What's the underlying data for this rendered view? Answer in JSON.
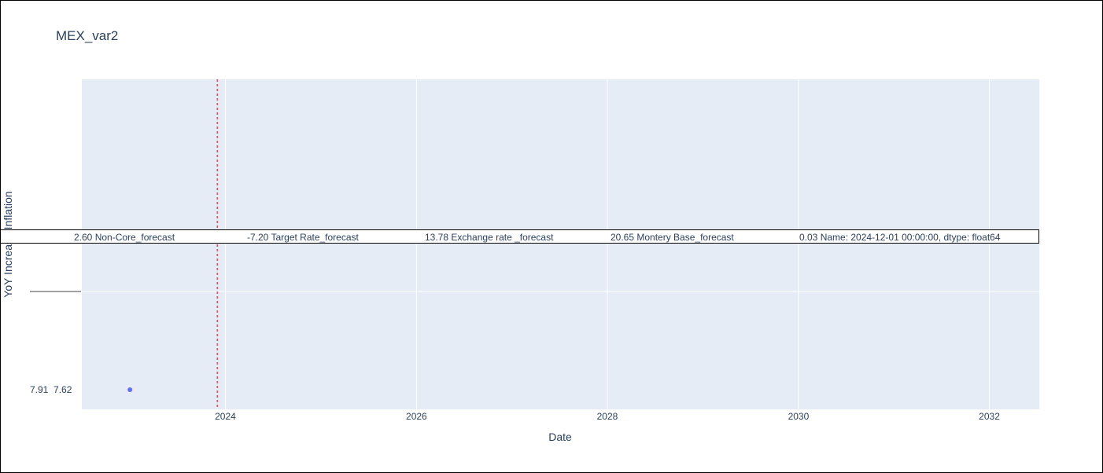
{
  "chart_data": {
    "type": "scatter",
    "title": "MEX_var2",
    "xlabel": "Date",
    "ylabel": "YoY Increase Inflation",
    "x_axis_type": "date",
    "xlim": [
      "2022-07-01",
      "2032-07-10"
    ],
    "x_ticks": [
      "2024",
      "2026",
      "2028",
      "2030",
      "2032"
    ],
    "y_tick_labels": [
      "7.91  7.62"
    ],
    "grid": true,
    "series": [
      {
        "x": [
          "2023-01-01"
        ],
        "y": [
          7.62
        ],
        "color": "#636efa"
      }
    ],
    "vline": {
      "x": "2023-12-01",
      "color": "#e8000b",
      "style": "dotted"
    },
    "annotation": {
      "items": [
        "2.60 Non-Core_forecast",
        "-7.20 Target Rate_forecast",
        "13.78 Exchange rate _forecast",
        "20.65 Montery Base_forecast",
        "0.03 Name: 2024-12-01 00:00:00, dtype: float64"
      ]
    }
  },
  "colors": {
    "plot_bg": "#e5ecf6",
    "grid": "#ffffff",
    "text": "#2a3f5f",
    "marker": "#636efa",
    "vline": "#e8000b"
  }
}
